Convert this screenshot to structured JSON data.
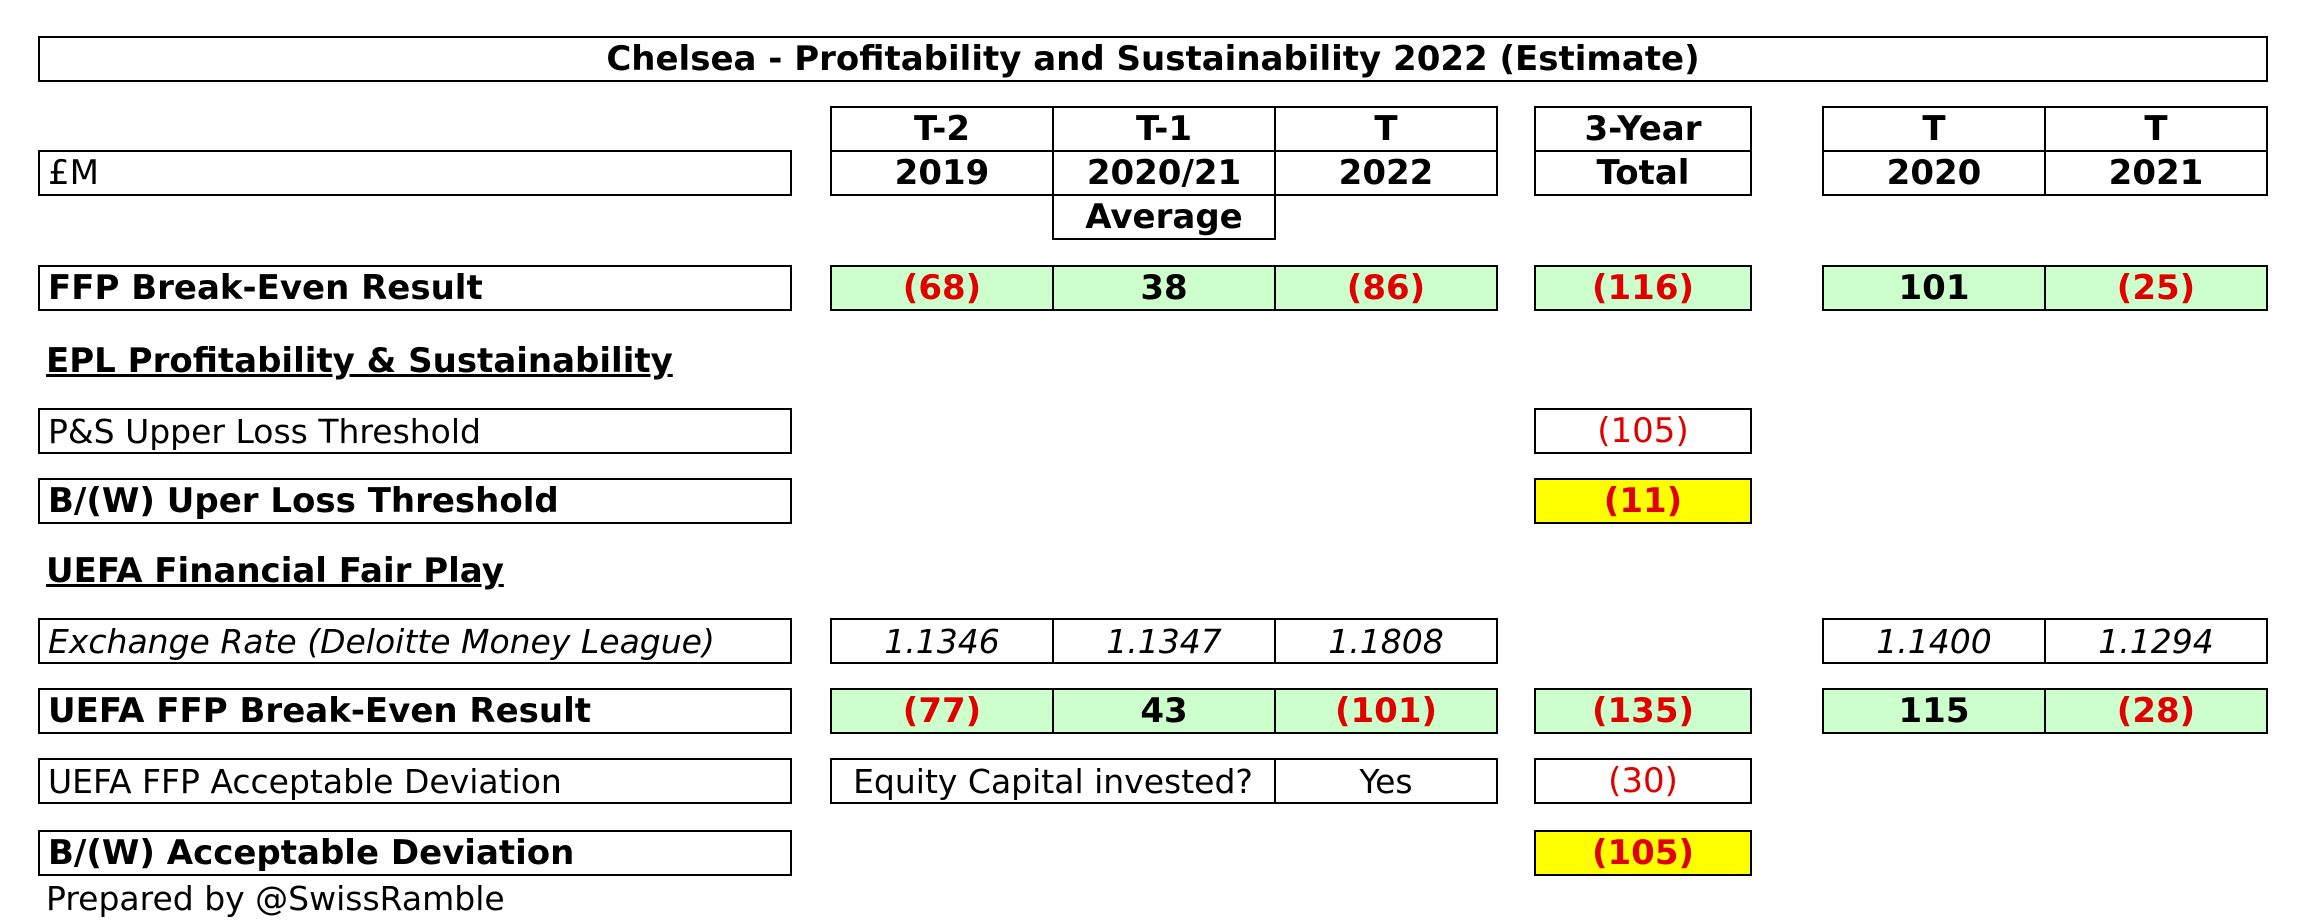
{
  "title": "Chelsea - Profitability and Sustainability 2022 (Estimate)",
  "currency_label": "£M",
  "columns": {
    "t2": {
      "top": "T-2",
      "bottom": "2019"
    },
    "t1": {
      "top": "T-1",
      "bottom": "2020/21",
      "extra": "Average"
    },
    "t": {
      "top": "T",
      "bottom": "2022"
    },
    "total": {
      "top": "3-Year",
      "bottom": "Total"
    },
    "t2020": {
      "top": "T",
      "bottom": "2020"
    },
    "t2021": {
      "top": "T",
      "bottom": "2021"
    }
  },
  "rows": {
    "ffp": {
      "label": "FFP Break-Even Result",
      "t2": "(68)",
      "t1": "38",
      "t": "(86)",
      "total": "(116)",
      "t2020": "101",
      "t2021": "(25)"
    },
    "epl_heading": "EPL Profitability & Sustainability",
    "ps_threshold": {
      "label": "P&S Upper Loss Threshold",
      "total": "(105)"
    },
    "bw_threshold": {
      "label": "B/(W) Uper Loss Threshold",
      "total": "(11)"
    },
    "uefa_heading": "UEFA Financial Fair Play",
    "exchange": {
      "label": "Exchange Rate (Deloitte Money League)",
      "t2": "1.1346",
      "t1": "1.1347",
      "t": "1.1808",
      "t2020": "1.1400",
      "t2021": "1.1294"
    },
    "uefa_ffp": {
      "label": "UEFA FFP Break-Even Result",
      "t2": "(77)",
      "t1": "43",
      "t": "(101)",
      "total": "(135)",
      "t2020": "115",
      "t2021": "(28)"
    },
    "deviation": {
      "label": "UEFA FFP Acceptable Deviation",
      "question": "Equity Capital invested?",
      "answer": "Yes",
      "total": "(30)"
    },
    "bw_deviation": {
      "label": "B/(W) Acceptable Deviation",
      "total": "(105)"
    }
  },
  "footer": "Prepared by @SwissRamble",
  "colors": {
    "negative": "#e00000",
    "result_fill": "#ccffcc",
    "highlight_fill": "#ffff00"
  }
}
